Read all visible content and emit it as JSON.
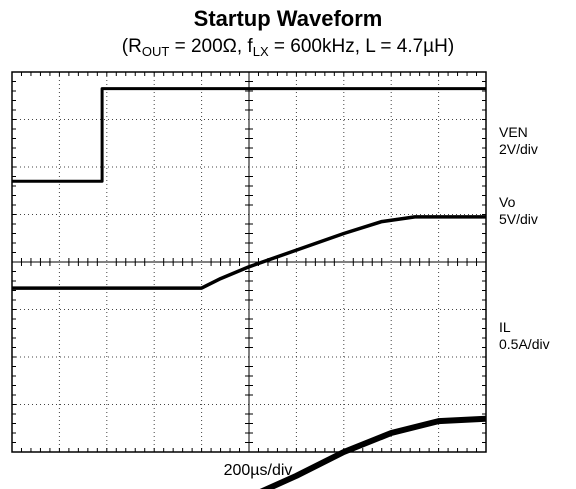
{
  "chart_data": {
    "type": "line",
    "title": "Startup Waveform",
    "subtitle": {
      "prefix": "(R",
      "r_sub": "OUT",
      "r_val": " = 200Ω, f",
      "f_sub": "LX",
      "rest": " = 600kHz, L = 4.7µH)"
    },
    "xlabel": "200µs/div",
    "x_divisions": 10,
    "y_divisions": 8,
    "grid": true,
    "series": [
      {
        "name": "VEN",
        "scale": "2V/div",
        "x_div": [
          0,
          1.9,
          1.9,
          3.5,
          10
        ],
        "y_div": [
          -2.3,
          -2.3,
          -0.35,
          -0.35,
          -0.35
        ]
      },
      {
        "name": "Vo",
        "scale": "5V/div",
        "x_div": [
          0,
          4.0,
          4.4,
          5.0,
          6.0,
          7.0,
          7.8,
          8.5,
          10
        ],
        "y_div": [
          -4.55,
          -4.55,
          -4.35,
          -4.1,
          -3.75,
          -3.4,
          -3.15,
          -3.05,
          -3.05
        ]
      },
      {
        "name": "IL",
        "scale": "0.5A/div",
        "x_div": [
          0,
          4.0,
          4.5,
          5.0,
          6.0,
          7.0,
          8.0,
          9.0,
          10
        ],
        "y_div": [
          -9.25,
          -9.25,
          -9.15,
          -8.95,
          -8.5,
          -8.0,
          -7.6,
          -7.35,
          -7.3
        ]
      }
    ],
    "channel_labels": [
      {
        "name": "VEN",
        "scale": "2V/div"
      },
      {
        "name": "Vo",
        "scale": "5V/div"
      },
      {
        "name": "IL",
        "scale": "0.5A/div"
      }
    ]
  }
}
